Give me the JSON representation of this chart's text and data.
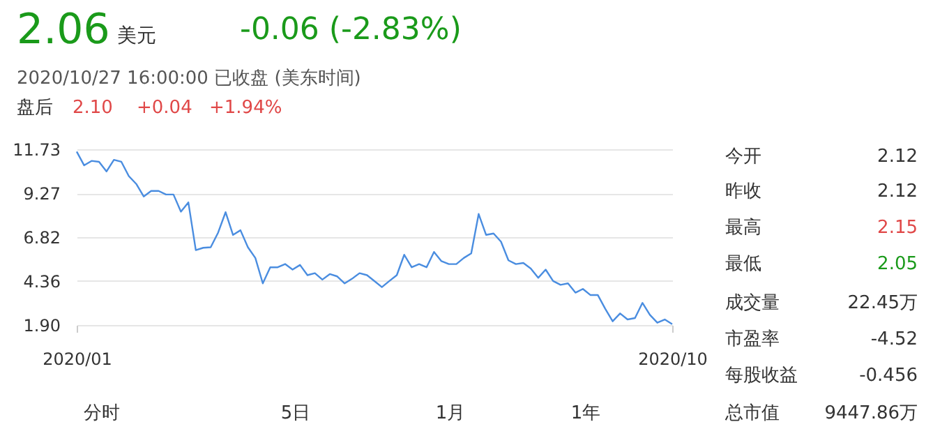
{
  "chart_data": {
    "type": "line",
    "title": "2.06",
    "annotations": [
      "美元",
      "-0.06 (-2.83%)",
      "2020/10/27 16:00:00  已收盘  (美东时间)",
      "盘后",
      "2.10",
      "+0.04",
      "+1.94%",
      "今开",
      "2.12",
      "昨收",
      "2.12",
      "最高",
      "2.15",
      "最低",
      "2.05",
      "成交量",
      "22.45万",
      "市盈率",
      "-4.52",
      "每股收益",
      "-0.456",
      "总市值",
      "9447.86万",
      "分时",
      "5日",
      "1月",
      "1年"
    ],
    "categories": [
      "2020/01",
      null,
      null,
      null,
      null,
      null,
      null,
      null,
      null,
      null,
      null,
      null,
      null,
      null,
      null,
      null,
      null,
      null,
      null,
      null,
      null,
      null,
      null,
      null,
      null,
      null,
      null,
      null,
      null,
      null,
      null,
      null,
      null,
      null,
      null,
      null,
      null,
      null,
      null,
      null,
      null,
      null,
      null,
      null,
      null,
      null,
      null,
      null,
      null,
      null,
      null,
      null,
      null,
      null,
      null,
      null,
      null,
      null,
      null,
      null,
      null,
      null,
      null,
      null,
      null,
      null,
      null,
      null,
      null,
      null,
      null,
      null,
      null,
      null,
      null,
      null,
      null,
      null,
      null,
      null,
      "2020/10"
    ],
    "series": [
      {
        "color": "#4a8de0",
        "values": [
          11.6,
          10.83,
          11.08,
          11.03,
          10.49,
          11.14,
          11.03,
          10.23,
          9.79,
          9.09,
          9.4,
          9.4,
          9.2,
          9.2,
          8.24,
          8.76,
          6.09,
          6.22,
          6.25,
          7.07,
          8.21,
          6.94,
          7.2,
          6.25,
          5.65,
          4.23,
          5.13,
          5.13,
          5.31,
          5.0,
          5.26,
          4.69,
          4.8,
          4.44,
          4.75,
          4.62,
          4.23,
          4.49,
          4.8,
          4.69,
          4.36,
          4.02,
          4.36,
          4.69,
          5.83,
          5.13,
          5.31,
          5.13,
          5.99,
          5.47,
          5.31,
          5.31,
          5.65,
          5.91,
          8.11,
          6.94,
          7.02,
          6.56,
          5.52,
          5.31,
          5.37,
          5.06,
          4.54,
          5.0,
          4.36,
          4.15,
          4.23,
          3.71,
          3.92,
          3.58,
          3.58,
          2.81,
          2.11,
          2.55,
          2.21,
          2.29,
          3.14,
          2.47,
          2.03,
          2.21,
          1.95
        ]
      }
    ],
    "ylim": [
      1.9,
      11.73
    ],
    "yticks": [
      {
        "value": 1.9,
        "label": "1.90"
      },
      4.36,
      6.82,
      9.27,
      11.73
    ],
    "grid": "y"
  }
}
